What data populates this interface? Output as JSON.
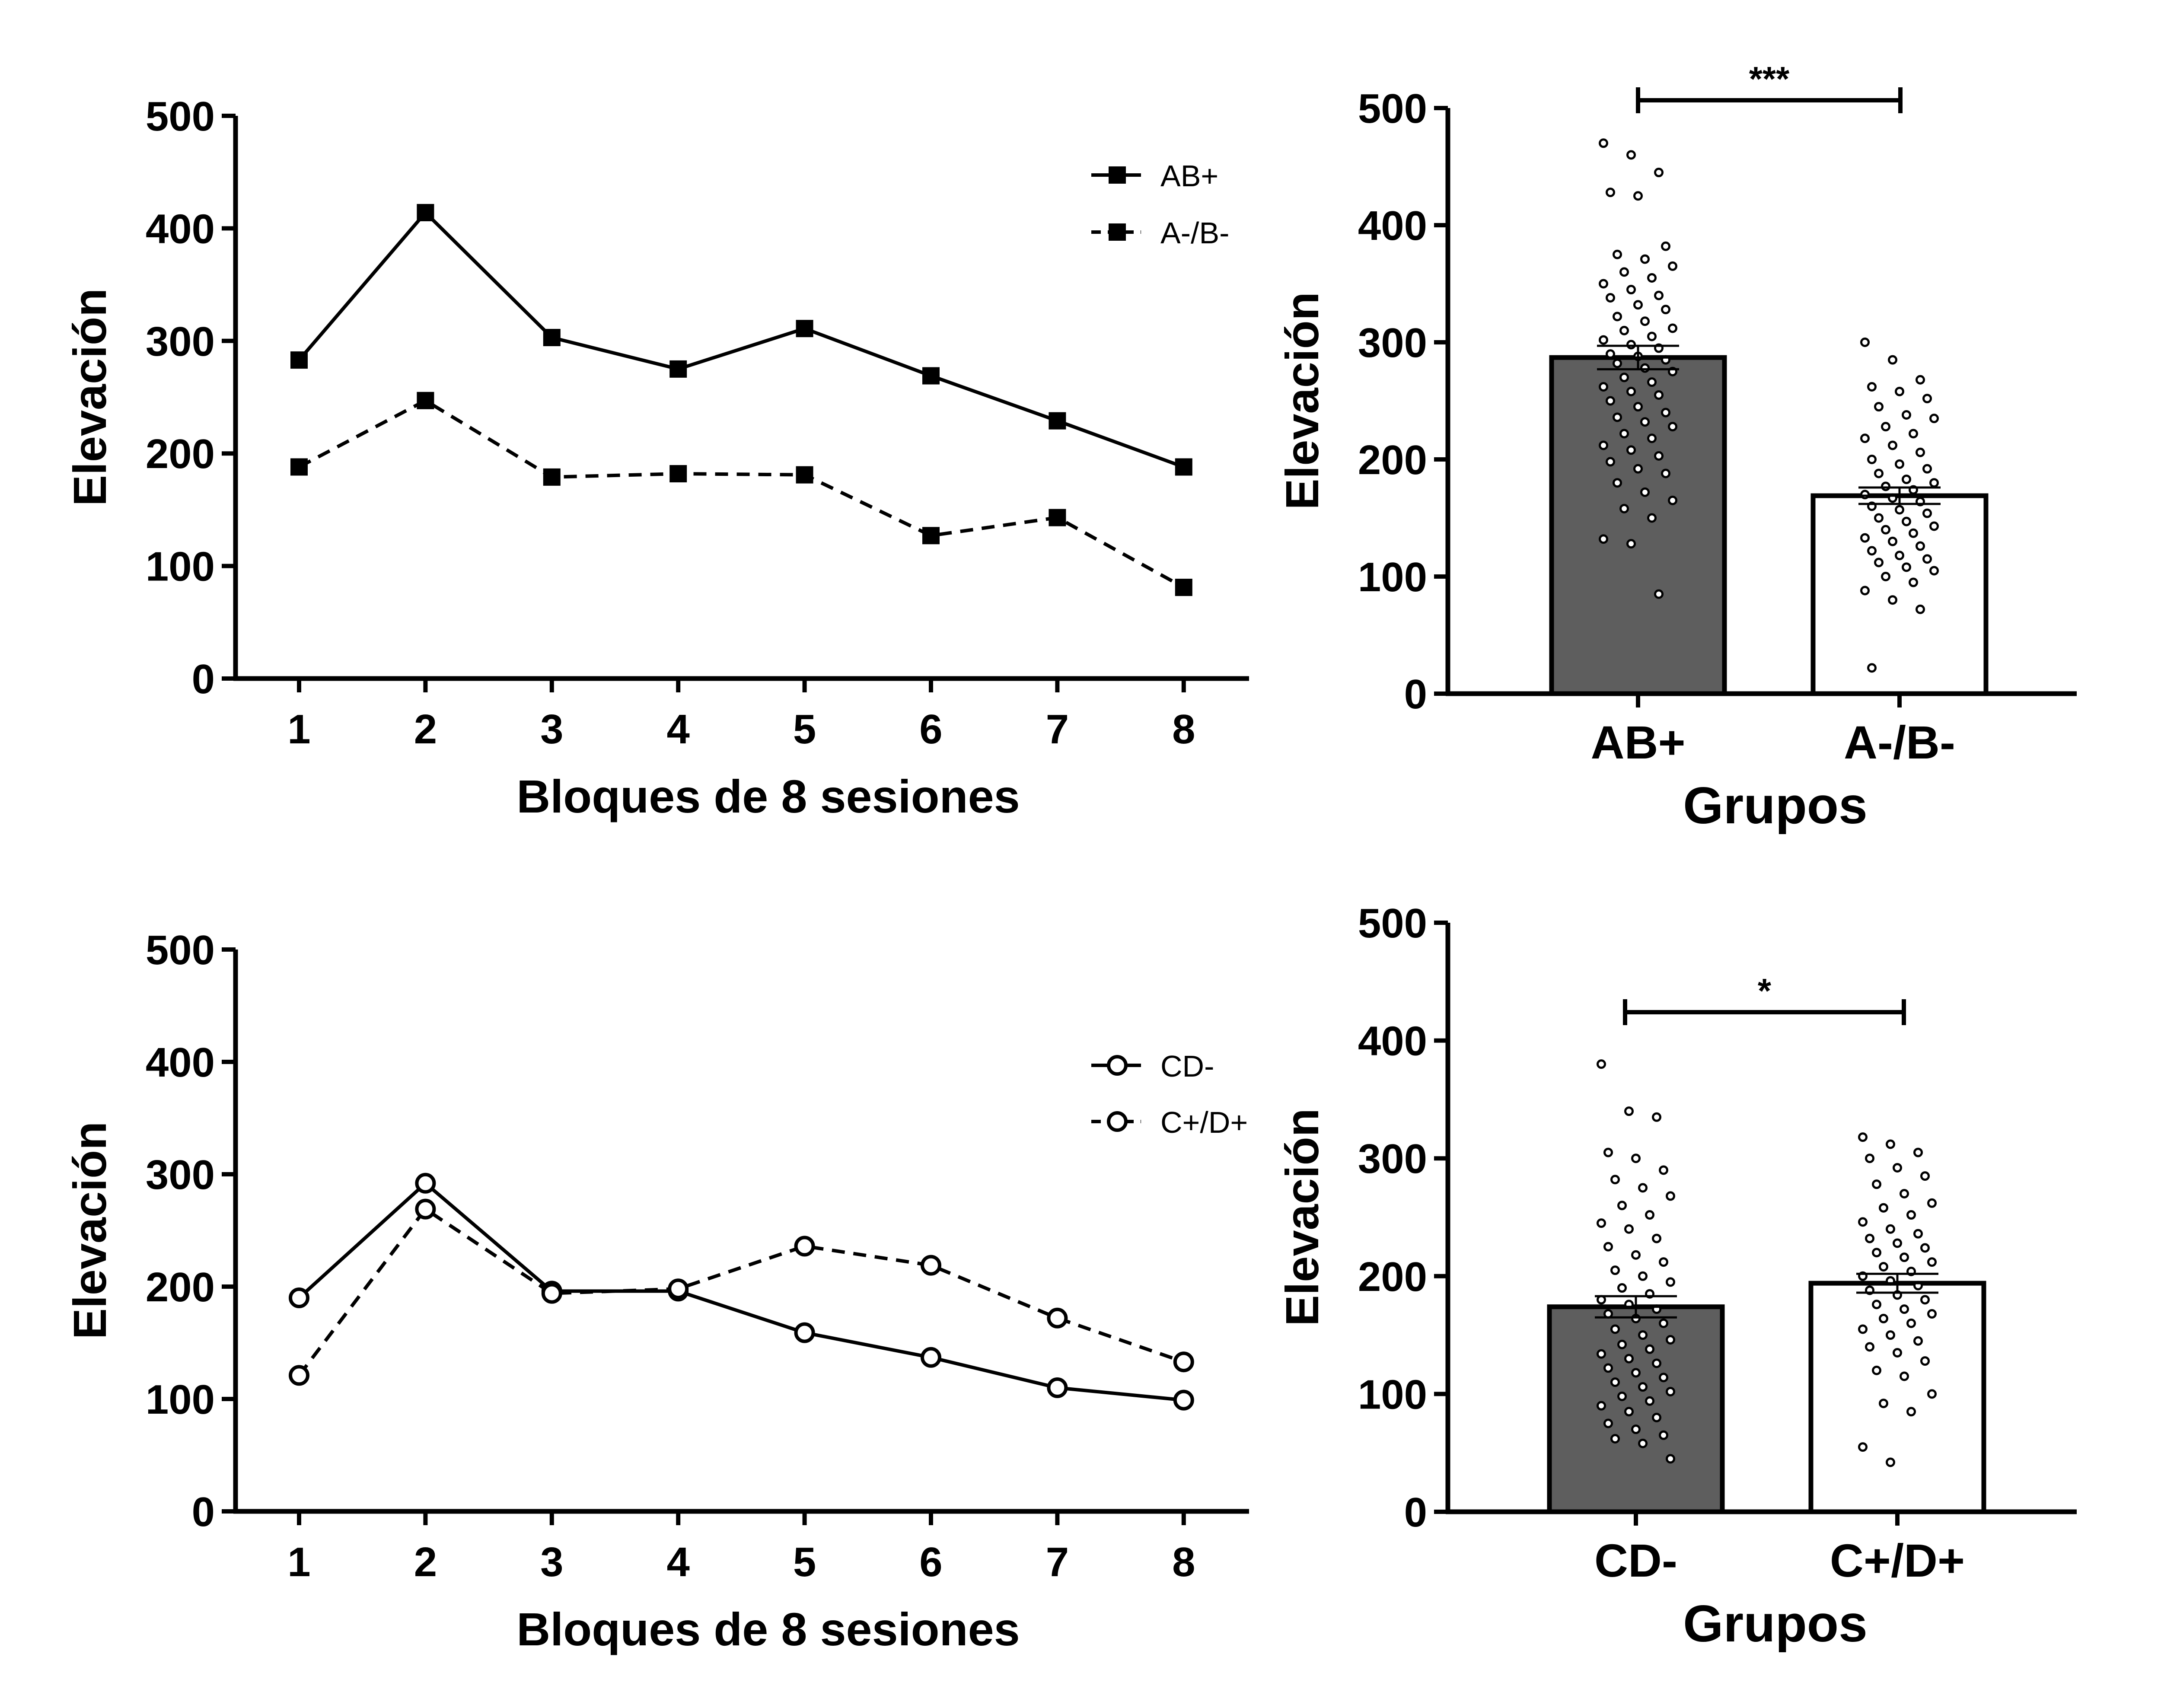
{
  "chart_data": [
    {
      "type": "line",
      "xlabel": "Bloques de 8 sesiones",
      "ylabel": "Elevación",
      "x": [
        "1",
        "2",
        "3",
        "4",
        "5",
        "6",
        "7",
        "8"
      ],
      "ylim": [
        0,
        500
      ],
      "yticks": [
        "0",
        "100",
        "200",
        "300",
        "400",
        "500"
      ],
      "legend_position": "top-right",
      "series": [
        {
          "name": "AB+",
          "marker": "square-filled",
          "line": "solid",
          "values": [
            283,
            414,
            303,
            275,
            311,
            269,
            229,
            188
          ]
        },
        {
          "name": "A-/B-",
          "marker": "square-filled",
          "line": "dashed",
          "values": [
            188,
            247,
            179,
            182,
            181,
            127,
            143,
            81
          ]
        }
      ]
    },
    {
      "type": "bar",
      "xlabel": "Grupos",
      "ylabel": "Elevación",
      "categories": [
        "AB+",
        "A-/B-"
      ],
      "values": [
        287,
        169
      ],
      "sem": [
        10,
        7
      ],
      "bar_colors": [
        "#5e5e5e",
        "#ffffff"
      ],
      "ylim": [
        0,
        500
      ],
      "yticks": [
        "0",
        "100",
        "200",
        "300",
        "400",
        "500"
      ],
      "significance": "***",
      "points": [
        [
          470,
          460,
          445,
          428,
          425,
          382,
          375,
          371,
          365,
          360,
          355,
          350,
          345,
          340,
          338,
          332,
          328,
          322,
          318,
          312,
          310,
          305,
          302,
          298,
          295,
          290,
          288,
          285,
          282,
          278,
          275,
          270,
          266,
          262,
          258,
          255,
          250,
          245,
          240,
          236,
          232,
          228,
          222,
          218,
          212,
          208,
          203,
          198,
          192,
          188,
          180,
          172,
          165,
          158,
          150,
          132,
          128,
          85
        ],
        [
          300,
          285,
          268,
          262,
          258,
          252,
          245,
          238,
          235,
          228,
          222,
          218,
          212,
          206,
          200,
          196,
          192,
          188,
          183,
          180,
          177,
          174,
          170,
          167,
          164,
          160,
          157,
          154,
          150,
          147,
          143,
          140,
          137,
          133,
          130,
          126,
          122,
          118,
          115,
          112,
          108,
          105,
          100,
          95,
          88,
          80,
          72,
          22
        ]
      ]
    },
    {
      "type": "line",
      "xlabel": "Bloques de 8 sesiones",
      "ylabel": "Elevación",
      "x": [
        "1",
        "2",
        "3",
        "4",
        "5",
        "6",
        "7",
        "8"
      ],
      "ylim": [
        0,
        500
      ],
      "yticks": [
        "0",
        "100",
        "200",
        "300",
        "400",
        "500"
      ],
      "legend_position": "top-right",
      "series": [
        {
          "name": "CD-",
          "marker": "circle-open",
          "line": "solid",
          "values": [
            190,
            292,
            196,
            196,
            159,
            137,
            110,
            99
          ]
        },
        {
          "name": "C+/D+",
          "marker": "circle-open",
          "line": "dashed",
          "values": [
            121,
            269,
            194,
            198,
            236,
            219,
            172,
            133
          ]
        }
      ]
    },
    {
      "type": "bar",
      "xlabel": "Grupos",
      "ylabel": "Elevación",
      "categories": [
        "CD-",
        "C+/D+"
      ],
      "values": [
        174,
        194
      ],
      "sem": [
        9,
        8
      ],
      "bar_colors": [
        "#5e5e5e",
        "#ffffff"
      ],
      "ylim": [
        0,
        500
      ],
      "yticks": [
        "0",
        "100",
        "200",
        "300",
        "400",
        "500"
      ],
      "significance": "*",
      "points": [
        [
          380,
          340,
          335,
          305,
          300,
          290,
          282,
          275,
          268,
          260,
          252,
          245,
          240,
          232,
          225,
          218,
          212,
          205,
          200,
          195,
          190,
          185,
          180,
          176,
          172,
          168,
          164,
          160,
          155,
          150,
          146,
          142,
          138,
          134,
          130,
          126,
          122,
          118,
          114,
          110,
          106,
          102,
          98,
          94,
          90,
          85,
          80,
          75,
          70,
          65,
          62,
          58,
          45
        ],
        [
          318,
          312,
          305,
          300,
          292,
          285,
          278,
          270,
          262,
          258,
          252,
          246,
          240,
          236,
          232,
          228,
          224,
          220,
          216,
          212,
          208,
          204,
          200,
          196,
          192,
          188,
          184,
          180,
          176,
          172,
          168,
          164,
          160,
          155,
          150,
          145,
          140,
          135,
          128,
          120,
          115,
          100,
          92,
          85,
          55,
          42
        ]
      ]
    }
  ]
}
